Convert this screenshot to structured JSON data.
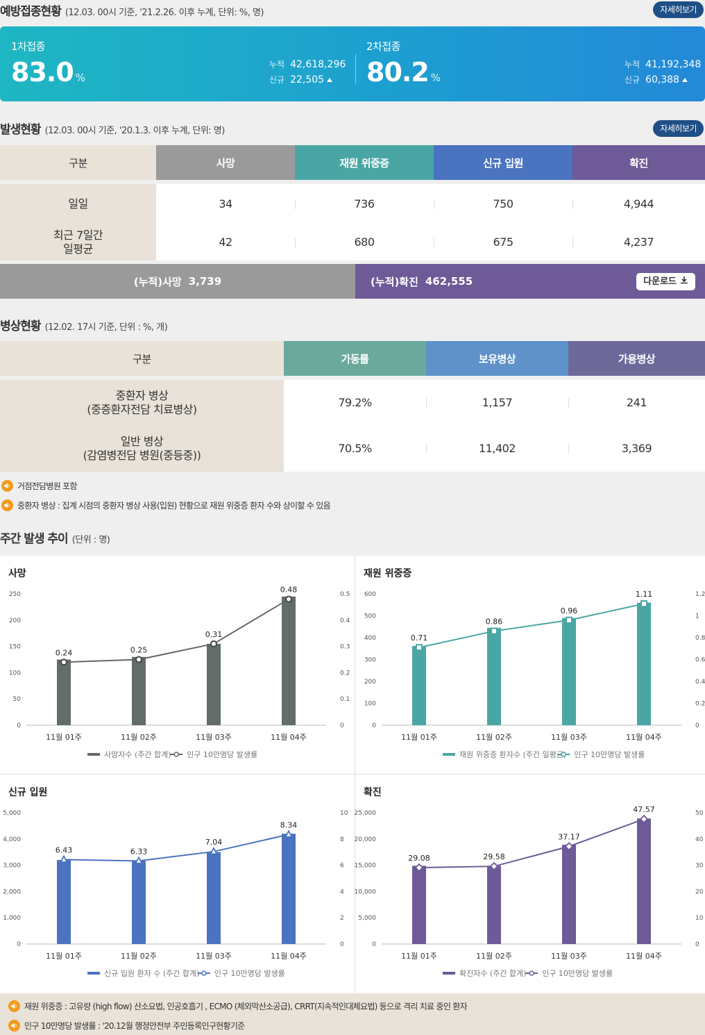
{
  "vaccination": {
    "title": "예방접종현황",
    "subtitle": "(12.03. 00시 기준, '21.2.26. 이후 누계, 단위: %, 명)",
    "more": "자세히보기",
    "dose1": {
      "label": "1차접종",
      "percent": "83.0",
      "unit": "%",
      "cum_label": "누적",
      "cum": "42,618,296",
      "new_label": "신규",
      "new": "22,505"
    },
    "dose2": {
      "label": "2차접종",
      "percent": "80.2",
      "unit": "%",
      "cum_label": "누적",
      "cum": "41,192,348",
      "new_label": "신규",
      "new": "60,388"
    }
  },
  "outbreak": {
    "title": "발생현황",
    "subtitle": "(12.03. 00시 기준, '20.1.3. 이후 누계, 단위: 명)",
    "more": "자세히보기",
    "headers": [
      "구분",
      "사망",
      "재원 위중증",
      "신규 입원",
      "확진"
    ],
    "header_colors": [
      "#e8e2d8",
      "#9a9a9a",
      "#4aa6a4",
      "#4a73c0",
      "#6d5a97"
    ],
    "rows": [
      {
        "label": "일일",
        "values": [
          "34",
          "736",
          "750",
          "4,944"
        ]
      },
      {
        "label": "최근 7일간\n일평균",
        "values": [
          "42",
          "680",
          "675",
          "4,237"
        ]
      }
    ],
    "cum_death_label": "(누적)사망",
    "cum_death": "3,739",
    "cum_confirmed_label": "(누적)확진",
    "cum_confirmed": "462,555",
    "download": "다운로드"
  },
  "beds": {
    "title": "병상현황",
    "subtitle": "(12.02. 17시 기준, 단위 : %, 개)",
    "headers": [
      "구분",
      "가동률",
      "보유병상",
      "가용병상"
    ],
    "header_colors": [
      "#e8e2d8",
      "#6aa99c",
      "#5e92c8",
      "#6d6a9a"
    ],
    "rows": [
      {
        "label": "중환자 병상\n(중증환자전담 치료병상)",
        "values": [
          "79.2%",
          "1,157",
          "241"
        ]
      },
      {
        "label": "일반 병상\n(감염병전담 병원(중등중))",
        "values": [
          "70.5%",
          "11,402",
          "3,369"
        ]
      }
    ],
    "notes": [
      "거점전담병원 포함",
      "중환자 병상 : 집계 시점의 중환자 병상 사용(입원) 현황으로 재원 위중증 환자 수와 상이할 수 있음"
    ]
  },
  "weekly": {
    "title": "주간 발생 추이",
    "subtitle": "(단위 : 명)"
  },
  "chart_data": [
    {
      "type": "bar",
      "title": "사망",
      "categories": [
        "11월 01주",
        "11월 02주",
        "11월 03주",
        "11월 04주"
      ],
      "series": [
        {
          "name": "사망자수 (주간 합계)",
          "type": "bar",
          "values": [
            125,
            130,
            155,
            245
          ],
          "axis": "left"
        },
        {
          "name": "인구 10만명당 발생률",
          "type": "line",
          "values": [
            0.24,
            0.25,
            0.31,
            0.48
          ],
          "labels": [
            "0.24",
            "0.25",
            "0.31",
            "0.48"
          ],
          "axis": "right"
        }
      ],
      "ylim": [
        0,
        250
      ],
      "yticks": [
        "0",
        "50",
        "100",
        "150",
        "200",
        "250"
      ],
      "y2lim": [
        0,
        0.5
      ],
      "y2ticks": [
        "0",
        "0.1",
        "0.2",
        "0.3",
        "0.4",
        "0.5"
      ],
      "bar_color": "#616c6b",
      "line_color": "#666666",
      "marker": "circle"
    },
    {
      "type": "bar",
      "title": "재원 위중증",
      "categories": [
        "11월 01주",
        "11월 02주",
        "11월 03주",
        "11월 04주"
      ],
      "series": [
        {
          "name": "재원 위중증 환자수 (주간 일평균)",
          "type": "bar",
          "values": [
            362,
            445,
            490,
            560
          ],
          "axis": "left"
        },
        {
          "name": "인구 10만명당 발생률",
          "type": "line",
          "values": [
            0.71,
            0.86,
            0.96,
            1.11
          ],
          "labels": [
            "0.71",
            "0.86",
            "0.96",
            "1.11"
          ],
          "axis": "right"
        }
      ],
      "ylim": [
        0,
        600
      ],
      "yticks": [
        "0",
        "100",
        "200",
        "300",
        "400",
        "500",
        "600"
      ],
      "y2lim": [
        0,
        1.2
      ],
      "y2ticks": [
        "0",
        "0.2",
        "0.4",
        "0.6",
        "0.8",
        "1",
        "1.2"
      ],
      "bar_color": "#4aa6a4",
      "line_color": "#4aa6a4",
      "marker": "square"
    },
    {
      "type": "bar",
      "title": "신규 입원",
      "categories": [
        "11월 01주",
        "11월 02주",
        "11월 03주",
        "11월 04주"
      ],
      "series": [
        {
          "name": "신규 입원 환자 수 (주간 합계)",
          "type": "bar",
          "values": [
            3200,
            3160,
            3500,
            4200
          ],
          "axis": "left"
        },
        {
          "name": "인구 10만명당 발생률",
          "type": "line",
          "values": [
            6.43,
            6.33,
            7.04,
            8.34
          ],
          "labels": [
            "6.43",
            "6.33",
            "7.04",
            "8.34"
          ],
          "axis": "right"
        }
      ],
      "ylim": [
        0,
        5000
      ],
      "yticks": [
        "0",
        "1,000",
        "2,000",
        "3,000",
        "4,000",
        "5,000"
      ],
      "y2lim": [
        0,
        10
      ],
      "y2ticks": [
        "0",
        "2",
        "4",
        "6",
        "8",
        "10"
      ],
      "bar_color": "#4a73c0",
      "line_color": "#4a73c0",
      "marker": "triangle"
    },
    {
      "type": "bar",
      "title": "확진",
      "categories": [
        "11월 01주",
        "11월 02주",
        "11월 03주",
        "11월 04주"
      ],
      "series": [
        {
          "name": "확진자수 (주간 합계)",
          "type": "bar",
          "values": [
            14900,
            14900,
            18900,
            23900
          ],
          "axis": "left"
        },
        {
          "name": "인구 10만명당 발생률",
          "type": "line",
          "values": [
            29.08,
            29.58,
            37.17,
            47.57
          ],
          "labels": [
            "29.08",
            "29.58",
            "37.17",
            "47.57"
          ],
          "axis": "right"
        }
      ],
      "ylim": [
        0,
        25000
      ],
      "yticks": [
        "0",
        "5,000",
        "10,000",
        "15,000",
        "20,000",
        "25,000"
      ],
      "y2lim": [
        0,
        50
      ],
      "y2ticks": [
        "0",
        "10",
        "20",
        "30",
        "40",
        "50"
      ],
      "bar_color": "#6d5a97",
      "line_color": "#6d5a97",
      "marker": "diamond"
    }
  ],
  "footnotes": [
    "재원 위중증 : 고유량 (high flow) 산소요법, 인공호흡기 , ECMO (체외막산소공급), CRRT(지속적인대체요법) 등으로 격리 치료 중인 환자",
    "인구 10만명당 발생률 : '20.12월 행정안전부 주민등록인구현황기준"
  ]
}
